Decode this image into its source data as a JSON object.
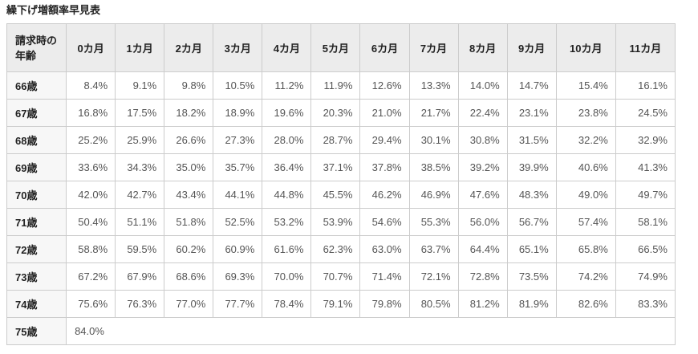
{
  "page": {
    "title": "繰下げ増額率早見表"
  },
  "table": {
    "corner_header": "請求時の年齢",
    "corner_header_lines": [
      "請求時の",
      "年齢"
    ],
    "month_headers": [
      "0カ月",
      "1カ月",
      "2カ月",
      "3カ月",
      "4カ月",
      "5カ月",
      "6カ月",
      "7カ月",
      "8カ月",
      "9カ月",
      "10カ月",
      "11カ月"
    ],
    "rows": [
      {
        "age": "66歳",
        "values": [
          "8.4%",
          "9.1%",
          "9.8%",
          "10.5%",
          "11.2%",
          "11.9%",
          "12.6%",
          "13.3%",
          "14.0%",
          "14.7%",
          "15.4%",
          "16.1%"
        ]
      },
      {
        "age": "67歳",
        "values": [
          "16.8%",
          "17.5%",
          "18.2%",
          "18.9%",
          "19.6%",
          "20.3%",
          "21.0%",
          "21.7%",
          "22.4%",
          "23.1%",
          "23.8%",
          "24.5%"
        ]
      },
      {
        "age": "68歳",
        "values": [
          "25.2%",
          "25.9%",
          "26.6%",
          "27.3%",
          "28.0%",
          "28.7%",
          "29.4%",
          "30.1%",
          "30.8%",
          "31.5%",
          "32.2%",
          "32.9%"
        ]
      },
      {
        "age": "69歳",
        "values": [
          "33.6%",
          "34.3%",
          "35.0%",
          "35.7%",
          "36.4%",
          "37.1%",
          "37.8%",
          "38.5%",
          "39.2%",
          "39.9%",
          "40.6%",
          "41.3%"
        ]
      },
      {
        "age": "70歳",
        "values": [
          "42.0%",
          "42.7%",
          "43.4%",
          "44.1%",
          "44.8%",
          "45.5%",
          "46.2%",
          "46.9%",
          "47.6%",
          "48.3%",
          "49.0%",
          "49.7%"
        ]
      },
      {
        "age": "71歳",
        "values": [
          "50.4%",
          "51.1%",
          "51.8%",
          "52.5%",
          "53.2%",
          "53.9%",
          "54.6%",
          "55.3%",
          "56.0%",
          "56.7%",
          "57.4%",
          "58.1%"
        ]
      },
      {
        "age": "72歳",
        "values": [
          "58.8%",
          "59.5%",
          "60.2%",
          "60.9%",
          "61.6%",
          "62.3%",
          "63.0%",
          "63.7%",
          "64.4%",
          "65.1%",
          "65.8%",
          "66.5%"
        ]
      },
      {
        "age": "73歳",
        "values": [
          "67.2%",
          "67.9%",
          "68.6%",
          "69.3%",
          "70.0%",
          "70.7%",
          "71.4%",
          "72.1%",
          "72.8%",
          "73.5%",
          "74.2%",
          "74.9%"
        ]
      },
      {
        "age": "74歳",
        "values": [
          "75.6%",
          "76.3%",
          "77.0%",
          "77.7%",
          "78.4%",
          "79.1%",
          "79.8%",
          "80.5%",
          "81.2%",
          "81.9%",
          "82.6%",
          "83.3%"
        ]
      },
      {
        "age": "75歳",
        "values": [
          "84.0%"
        ]
      }
    ]
  },
  "colors": {
    "header_bg": "#ececec",
    "row_label_bg": "#f7f7f7",
    "border": "#cccccc",
    "value_text": "#555555",
    "heading_text": "#222222"
  }
}
